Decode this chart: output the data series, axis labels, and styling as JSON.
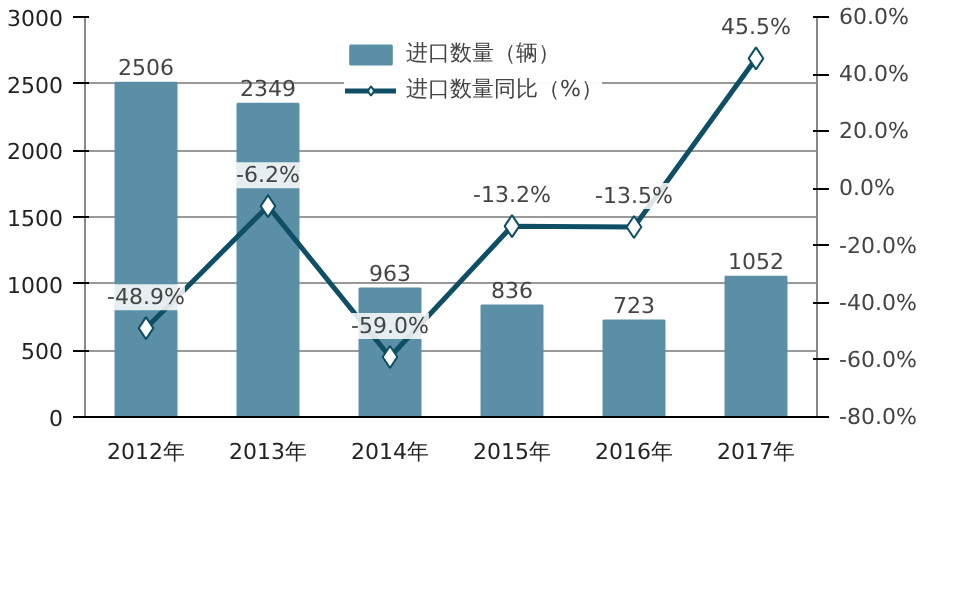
{
  "chart_data": {
    "type": "bar",
    "categories": [
      "2012年",
      "2013年",
      "2014年",
      "2015年",
      "2016年",
      "2017年"
    ],
    "series": [
      {
        "name": "进口数量（辆）",
        "color": "#5b8fa6",
        "values": [
          2506,
          2349,
          963,
          836,
          723,
          1052
        ],
        "value_labels": [
          "2506",
          "2349",
          "963",
          "836",
          "723",
          "1052"
        ]
      },
      {
        "name": "进口数量同比（%）",
        "type": "line",
        "axis": "y2",
        "color": "#0e4f66",
        "marker": "diamond",
        "values": [
          -48.9,
          -6.2,
          -59.0,
          -13.2,
          -13.5,
          45.5
        ],
        "value_labels": [
          "-48.9%",
          "-6.2%",
          "-59.0%",
          "-13.2%",
          "-13.5%",
          "45.5%"
        ]
      }
    ],
    "ylim": [
      0,
      3000
    ],
    "yticks": [
      0,
      500,
      1000,
      1500,
      2000,
      2500,
      3000
    ],
    "y2lim": [
      -80,
      60
    ],
    "y2ticks": [
      {
        "value": -80,
        "label": "-80.0%"
      },
      {
        "value": -60,
        "label": "-60.0%"
      },
      {
        "value": -40,
        "label": "-40.0%"
      },
      {
        "value": -20,
        "label": "-20.0%"
      },
      {
        "value": 0,
        "label": "0.0%"
      },
      {
        "value": 20,
        "label": "20.0%"
      },
      {
        "value": 40,
        "label": "40.0%"
      },
      {
        "value": 60,
        "label": "60.0%"
      }
    ],
    "grid": "y",
    "legend": "top"
  }
}
